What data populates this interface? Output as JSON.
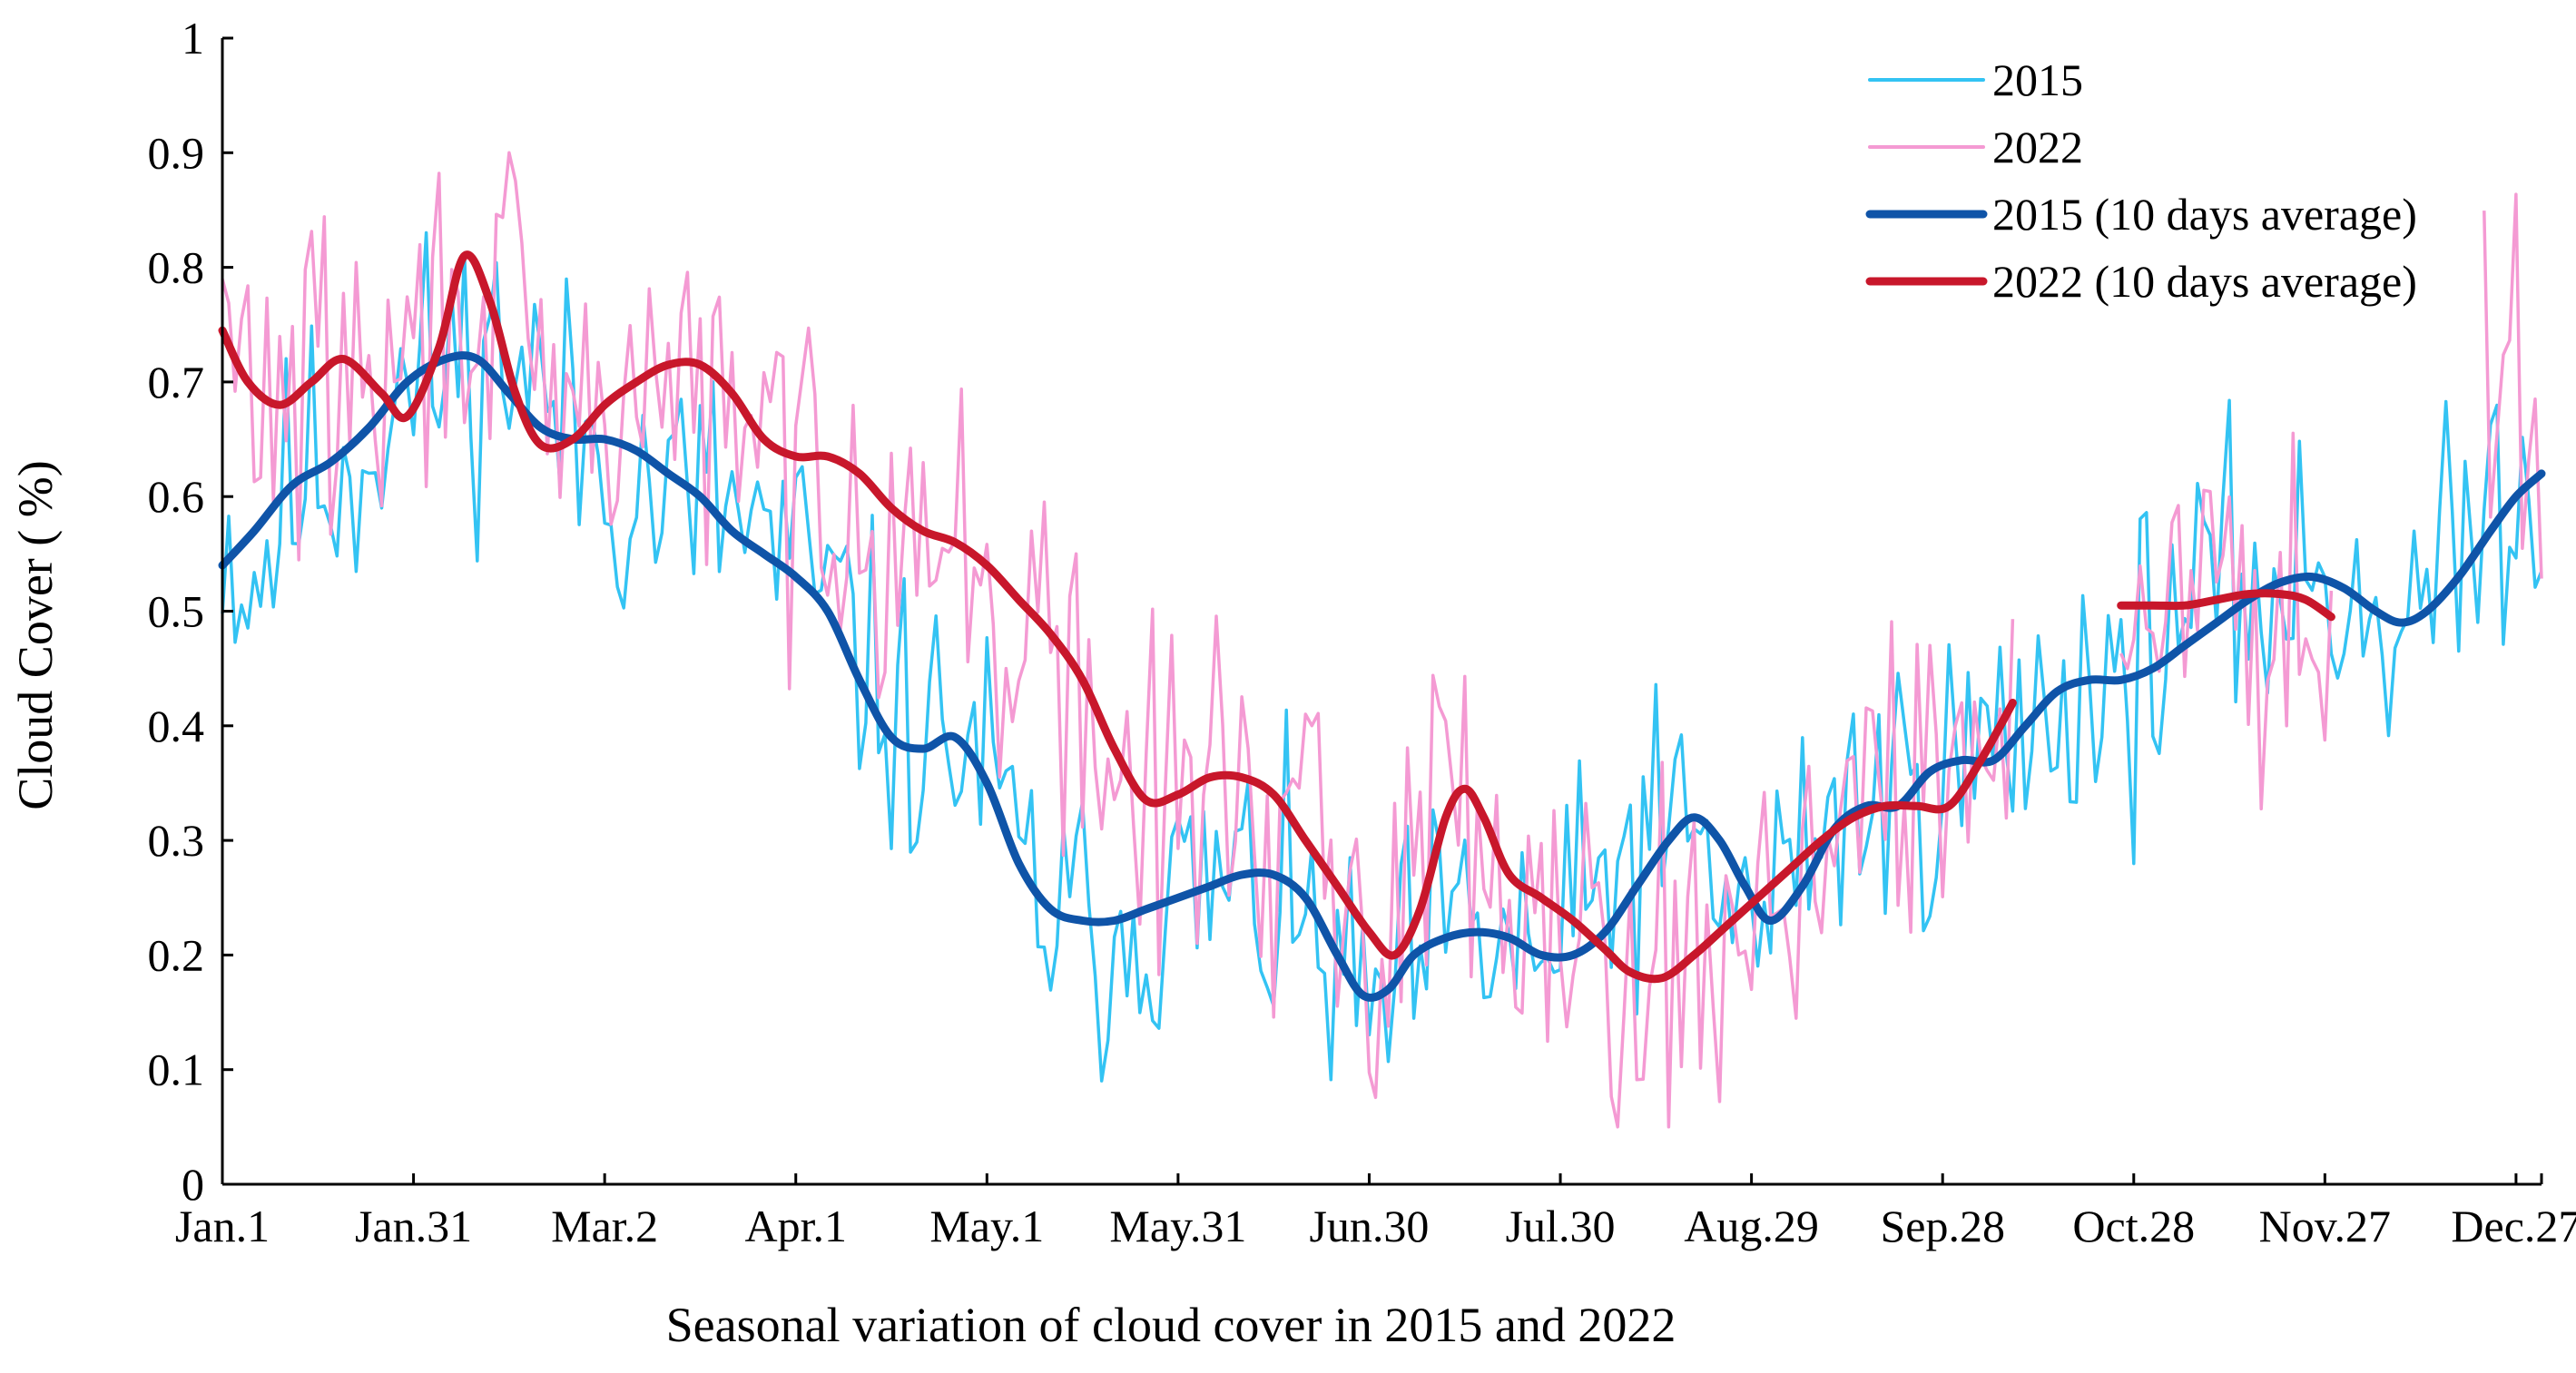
{
  "chart_data": {
    "type": "line",
    "title": "",
    "xlabel": "Seasonal variation of cloud cover in 2015 and 2022",
    "ylabel": "Cloud Cover ( %)",
    "ylim": [
      0,
      1
    ],
    "xlim": [
      1,
      365
    ],
    "x_unit": "day of year",
    "grid": false,
    "legend_position": "top-right",
    "y_ticks": [
      "0",
      "0.1",
      "0.2",
      "0.3",
      "0.4",
      "0.5",
      "0.6",
      "0.7",
      "0.8",
      "0.9",
      "1"
    ],
    "x_ticks": [
      {
        "day": 1,
        "label": "Jan.1"
      },
      {
        "day": 31,
        "label": "Jan.31"
      },
      {
        "day": 61,
        "label": "Mar.2"
      },
      {
        "day": 91,
        "label": "Apr.1"
      },
      {
        "day": 121,
        "label": "May.1"
      },
      {
        "day": 151,
        "label": "May.31"
      },
      {
        "day": 181,
        "label": "Jun.30"
      },
      {
        "day": 211,
        "label": "Jul.30"
      },
      {
        "day": 241,
        "label": "Aug.29"
      },
      {
        "day": 271,
        "label": "Sep.28"
      },
      {
        "day": 301,
        "label": "Oct.28"
      },
      {
        "day": 331,
        "label": "Nov.27"
      },
      {
        "day": 361,
        "label": "Dec.27"
      }
    ],
    "series": [
      {
        "name": "2015",
        "color": "#33c3f3",
        "style": "daily",
        "ranges": [
          [
            1,
            365
          ]
        ],
        "knots": [
          [
            1,
            0.58
          ],
          [
            5,
            0.52
          ],
          [
            10,
            0.58
          ],
          [
            15,
            0.63
          ],
          [
            20,
            0.62
          ],
          [
            25,
            0.66
          ],
          [
            30,
            0.69
          ],
          [
            35,
            0.71
          ],
          [
            40,
            0.72
          ],
          [
            45,
            0.73
          ],
          [
            50,
            0.7
          ],
          [
            55,
            0.66
          ],
          [
            60,
            0.64
          ],
          [
            65,
            0.61
          ],
          [
            70,
            0.6
          ],
          [
            75,
            0.6
          ],
          [
            80,
            0.59
          ],
          [
            85,
            0.57
          ],
          [
            90,
            0.54
          ],
          [
            95,
            0.52
          ],
          [
            100,
            0.47
          ],
          [
            105,
            0.42
          ],
          [
            110,
            0.39
          ],
          [
            115,
            0.39
          ],
          [
            120,
            0.37
          ],
          [
            125,
            0.29
          ],
          [
            130,
            0.24
          ],
          [
            135,
            0.22
          ],
          [
            140,
            0.22
          ],
          [
            145,
            0.24
          ],
          [
            150,
            0.25
          ],
          [
            155,
            0.25
          ],
          [
            160,
            0.26
          ],
          [
            165,
            0.24
          ],
          [
            170,
            0.22
          ],
          [
            175,
            0.19
          ],
          [
            180,
            0.14
          ],
          [
            185,
            0.16
          ],
          [
            190,
            0.2
          ],
          [
            195,
            0.22
          ],
          [
            200,
            0.21
          ],
          [
            205,
            0.2
          ],
          [
            210,
            0.2
          ],
          [
            215,
            0.23
          ],
          [
            220,
            0.28
          ],
          [
            225,
            0.3
          ],
          [
            230,
            0.3
          ],
          [
            235,
            0.28
          ],
          [
            240,
            0.22
          ],
          [
            245,
            0.25
          ],
          [
            250,
            0.31
          ],
          [
            255,
            0.33
          ],
          [
            260,
            0.33
          ],
          [
            265,
            0.35
          ],
          [
            270,
            0.36
          ],
          [
            275,
            0.37
          ],
          [
            280,
            0.38
          ],
          [
            285,
            0.4
          ],
          [
            290,
            0.43
          ],
          [
            295,
            0.44
          ],
          [
            300,
            0.44
          ],
          [
            305,
            0.48
          ],
          [
            310,
            0.5
          ],
          [
            315,
            0.52
          ],
          [
            320,
            0.52
          ],
          [
            325,
            0.52
          ],
          [
            330,
            0.53
          ],
          [
            335,
            0.52
          ],
          [
            340,
            0.5
          ],
          [
            345,
            0.5
          ],
          [
            350,
            0.53
          ],
          [
            355,
            0.58
          ],
          [
            360,
            0.62
          ],
          [
            365,
            0.6
          ]
        ],
        "noise": 0.065,
        "seed": 11
      },
      {
        "name": "2022",
        "color": "#f49ad3",
        "style": "daily",
        "ranges": [
          [
            1,
            282
          ],
          [
            299,
            332
          ],
          [
            356,
            365
          ]
        ],
        "knots": [
          [
            1,
            0.74
          ],
          [
            5,
            0.7
          ],
          [
            10,
            0.69
          ],
          [
            15,
            0.7
          ],
          [
            20,
            0.71
          ],
          [
            25,
            0.68
          ],
          [
            30,
            0.71
          ],
          [
            35,
            0.76
          ],
          [
            40,
            0.8
          ],
          [
            45,
            0.77
          ],
          [
            50,
            0.68
          ],
          [
            55,
            0.65
          ],
          [
            60,
            0.67
          ],
          [
            65,
            0.7
          ],
          [
            70,
            0.71
          ],
          [
            75,
            0.69
          ],
          [
            80,
            0.66
          ],
          [
            85,
            0.64
          ],
          [
            90,
            0.63
          ],
          [
            95,
            0.62
          ],
          [
            100,
            0.61
          ],
          [
            105,
            0.59
          ],
          [
            110,
            0.57
          ],
          [
            115,
            0.55
          ],
          [
            120,
            0.52
          ],
          [
            125,
            0.49
          ],
          [
            130,
            0.46
          ],
          [
            135,
            0.41
          ],
          [
            140,
            0.37
          ],
          [
            145,
            0.33
          ],
          [
            150,
            0.34
          ],
          [
            155,
            0.35
          ],
          [
            160,
            0.35
          ],
          [
            165,
            0.33
          ],
          [
            170,
            0.29
          ],
          [
            175,
            0.25
          ],
          [
            180,
            0.22
          ],
          [
            185,
            0.24
          ],
          [
            190,
            0.32
          ],
          [
            195,
            0.34
          ],
          [
            200,
            0.3
          ],
          [
            205,
            0.27
          ],
          [
            210,
            0.25
          ],
          [
            215,
            0.23
          ],
          [
            220,
            0.21
          ],
          [
            225,
            0.19
          ],
          [
            230,
            0.18
          ],
          [
            235,
            0.2
          ],
          [
            240,
            0.23
          ],
          [
            245,
            0.27
          ],
          [
            250,
            0.3
          ],
          [
            255,
            0.32
          ],
          [
            260,
            0.33
          ],
          [
            265,
            0.33
          ],
          [
            270,
            0.33
          ],
          [
            275,
            0.36
          ],
          [
            282,
            0.42
          ],
          [
            299,
            0.5
          ],
          [
            305,
            0.51
          ],
          [
            310,
            0.5
          ],
          [
            315,
            0.51
          ],
          [
            320,
            0.52
          ],
          [
            325,
            0.51
          ],
          [
            332,
            0.49
          ],
          [
            356,
            0.7
          ],
          [
            360,
            0.72
          ],
          [
            365,
            0.66
          ]
        ],
        "noise": 0.075,
        "seed": 29
      },
      {
        "name": "2015 (10 days average)",
        "color": "#0f54a8",
        "style": "smooth",
        "ranges": [
          [
            1,
            365
          ]
        ],
        "points": [
          [
            1,
            0.54
          ],
          [
            6,
            0.57
          ],
          [
            12,
            0.61
          ],
          [
            18,
            0.63
          ],
          [
            24,
            0.66
          ],
          [
            30,
            0.7
          ],
          [
            36,
            0.72
          ],
          [
            41,
            0.72
          ],
          [
            46,
            0.69
          ],
          [
            51,
            0.66
          ],
          [
            56,
            0.65
          ],
          [
            61,
            0.65
          ],
          [
            66,
            0.64
          ],
          [
            71,
            0.62
          ],
          [
            76,
            0.6
          ],
          [
            81,
            0.57
          ],
          [
            86,
            0.55
          ],
          [
            91,
            0.53
          ],
          [
            96,
            0.5
          ],
          [
            101,
            0.44
          ],
          [
            106,
            0.39
          ],
          [
            111,
            0.38
          ],
          [
            116,
            0.39
          ],
          [
            121,
            0.35
          ],
          [
            126,
            0.28
          ],
          [
            131,
            0.24
          ],
          [
            136,
            0.23
          ],
          [
            141,
            0.23
          ],
          [
            146,
            0.24
          ],
          [
            151,
            0.25
          ],
          [
            156,
            0.26
          ],
          [
            161,
            0.27
          ],
          [
            166,
            0.27
          ],
          [
            171,
            0.25
          ],
          [
            176,
            0.2
          ],
          [
            180,
            0.165
          ],
          [
            184,
            0.17
          ],
          [
            188,
            0.2
          ],
          [
            193,
            0.215
          ],
          [
            198,
            0.22
          ],
          [
            203,
            0.215
          ],
          [
            208,
            0.2
          ],
          [
            213,
            0.2
          ],
          [
            218,
            0.22
          ],
          [
            223,
            0.26
          ],
          [
            228,
            0.3
          ],
          [
            232,
            0.32
          ],
          [
            236,
            0.3
          ],
          [
            240,
            0.26
          ],
          [
            244,
            0.23
          ],
          [
            249,
            0.26
          ],
          [
            254,
            0.31
          ],
          [
            259,
            0.33
          ],
          [
            264,
            0.33
          ],
          [
            269,
            0.36
          ],
          [
            274,
            0.37
          ],
          [
            279,
            0.37
          ],
          [
            284,
            0.4
          ],
          [
            289,
            0.43
          ],
          [
            294,
            0.44
          ],
          [
            299,
            0.44
          ],
          [
            304,
            0.45
          ],
          [
            309,
            0.47
          ],
          [
            314,
            0.49
          ],
          [
            319,
            0.51
          ],
          [
            324,
            0.525
          ],
          [
            329,
            0.53
          ],
          [
            334,
            0.52
          ],
          [
            339,
            0.5
          ],
          [
            343,
            0.49
          ],
          [
            347,
            0.5
          ],
          [
            352,
            0.53
          ],
          [
            357,
            0.57
          ],
          [
            361,
            0.6
          ],
          [
            365,
            0.62
          ]
        ]
      },
      {
        "name": "2022 (10 days average)",
        "color": "#c8172b",
        "style": "smooth",
        "ranges": [
          [
            1,
            282
          ],
          [
            299,
            332
          ]
        ],
        "points": [
          [
            1,
            0.745
          ],
          [
            5,
            0.7
          ],
          [
            10,
            0.68
          ],
          [
            15,
            0.7
          ],
          [
            20,
            0.72
          ],
          [
            26,
            0.69
          ],
          [
            30,
            0.67
          ],
          [
            35,
            0.73
          ],
          [
            39,
            0.81
          ],
          [
            43,
            0.77
          ],
          [
            47,
            0.69
          ],
          [
            51,
            0.645
          ],
          [
            56,
            0.65
          ],
          [
            61,
            0.68
          ],
          [
            66,
            0.7
          ],
          [
            71,
            0.715
          ],
          [
            76,
            0.715
          ],
          [
            81,
            0.69
          ],
          [
            86,
            0.65
          ],
          [
            91,
            0.635
          ],
          [
            96,
            0.635
          ],
          [
            101,
            0.62
          ],
          [
            106,
            0.59
          ],
          [
            111,
            0.57
          ],
          [
            116,
            0.56
          ],
          [
            121,
            0.54
          ],
          [
            126,
            0.51
          ],
          [
            131,
            0.48
          ],
          [
            136,
            0.44
          ],
          [
            141,
            0.38
          ],
          [
            146,
            0.335
          ],
          [
            151,
            0.34
          ],
          [
            156,
            0.355
          ],
          [
            161,
            0.355
          ],
          [
            166,
            0.34
          ],
          [
            171,
            0.3
          ],
          [
            176,
            0.26
          ],
          [
            181,
            0.22
          ],
          [
            185,
            0.2
          ],
          [
            189,
            0.24
          ],
          [
            193,
            0.32
          ],
          [
            196,
            0.345
          ],
          [
            199,
            0.32
          ],
          [
            203,
            0.27
          ],
          [
            208,
            0.25
          ],
          [
            213,
            0.23
          ],
          [
            218,
            0.205
          ],
          [
            222,
            0.185
          ],
          [
            227,
            0.18
          ],
          [
            232,
            0.2
          ],
          [
            237,
            0.225
          ],
          [
            242,
            0.25
          ],
          [
            247,
            0.275
          ],
          [
            252,
            0.3
          ],
          [
            257,
            0.32
          ],
          [
            262,
            0.33
          ],
          [
            267,
            0.33
          ],
          [
            272,
            0.33
          ],
          [
            277,
            0.37
          ],
          [
            282,
            0.42
          ],
          [
            299,
            0.505
          ],
          [
            304,
            0.505
          ],
          [
            309,
            0.505
          ],
          [
            314,
            0.51
          ],
          [
            319,
            0.515
          ],
          [
            324,
            0.515
          ],
          [
            328,
            0.51
          ],
          [
            332,
            0.495
          ]
        ]
      }
    ]
  }
}
